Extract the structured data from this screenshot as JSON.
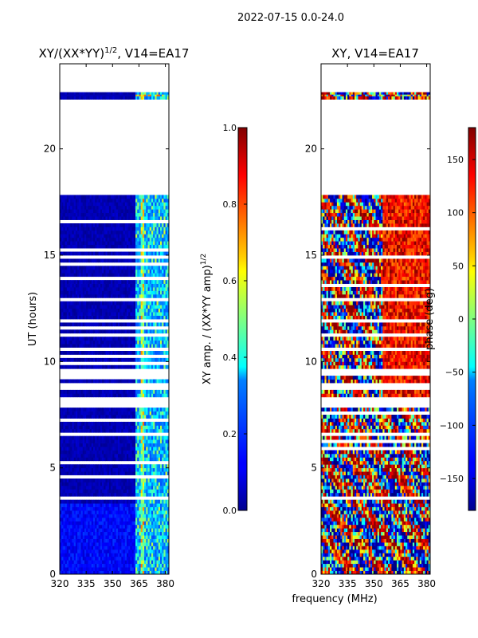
{
  "suptitle": "2022-07-15 0.0-24.0",
  "shared_xlabel": "frequency (MHz)",
  "chart_data": [
    {
      "type": "heatmap",
      "title_main": "XY/(XX*YY)",
      "title_sup": "1/2",
      "title_tail": ", V14=EA17",
      "ylabel": "UT (hours)",
      "xlabel": "",
      "xlim": [
        320,
        382
      ],
      "ylim": [
        0,
        24
      ],
      "xticks": [
        320,
        335,
        350,
        365,
        380
      ],
      "yticks": [
        0,
        5,
        10,
        15,
        20
      ],
      "colormap": "jet",
      "colorbar": {
        "label_main": "XY amp. / (XX*YY amp)",
        "label_sup": "1/2",
        "range": [
          0,
          1
        ],
        "ticks": [
          0.0,
          0.2,
          0.4,
          0.6,
          0.8,
          1.0
        ],
        "tick_labels": [
          "0.0",
          "0.2",
          "0.4",
          "0.6",
          "0.8",
          "1.0"
        ]
      },
      "blank_time_ranges_hours": [
        [
          17.8,
          22.4
        ],
        [
          22.6,
          24.0
        ],
        [
          9.3,
          9.6
        ],
        [
          8.6,
          8.9
        ],
        [
          7.8,
          8.3
        ]
      ],
      "dominant_value_below_363MHz": 0.05,
      "band_363_382MHz_value_range": [
        0.2,
        0.6
      ]
    },
    {
      "type": "heatmap",
      "title": "XY, V14=EA17",
      "ylabel": "",
      "xlabel": "",
      "xlim": [
        320,
        382
      ],
      "ylim": [
        0,
        24
      ],
      "xticks": [
        320,
        335,
        350,
        365,
        380
      ],
      "yticks": [
        0,
        5,
        10,
        15,
        20
      ],
      "colormap": "jet",
      "colorbar": {
        "label": "phase (deg)",
        "range": [
          -180,
          180
        ],
        "ticks": [
          -150,
          -100,
          -50,
          0,
          50,
          100,
          150
        ],
        "tick_labels": [
          "−150",
          "−100",
          "−50",
          "0",
          "50",
          "100",
          "150"
        ]
      },
      "blank_time_ranges_hours": [
        [
          17.8,
          22.4
        ],
        [
          22.6,
          24.0
        ],
        [
          9.3,
          9.6
        ],
        [
          8.6,
          8.9
        ],
        [
          7.8,
          8.3
        ]
      ],
      "value_range_deg": [
        -180,
        180
      ]
    }
  ],
  "colors": {
    "jet_dark_blue": "#00008f",
    "jet_blue": "#0000ff",
    "jet_cyan": "#00ffff",
    "jet_yellow": "#ffff00",
    "jet_red": "#ff0000",
    "jet_dark_red": "#800000"
  }
}
